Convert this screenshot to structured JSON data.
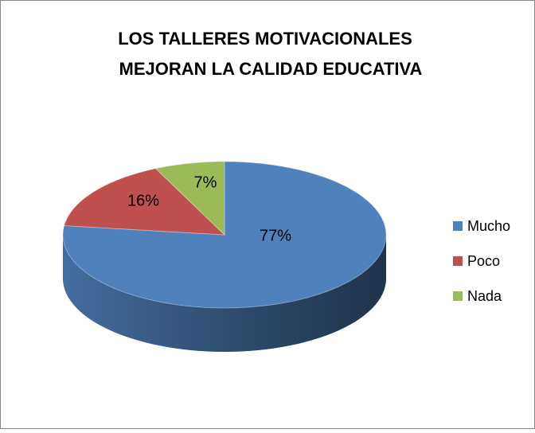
{
  "chart_data": {
    "type": "pie3d",
    "title": [
      "LOS TALLERES MOTIVACIONALES",
      "MEJORAN LA CALIDAD EDUCATIVA"
    ],
    "categories": [
      "Mucho",
      "Poco",
      "Nada"
    ],
    "values": [
      77,
      16,
      7
    ],
    "value_labels": [
      "77%",
      "16%",
      "7%"
    ],
    "colors": [
      "#4f81bd",
      "#c0504d",
      "#9bbb59"
    ],
    "legend": "right"
  }
}
